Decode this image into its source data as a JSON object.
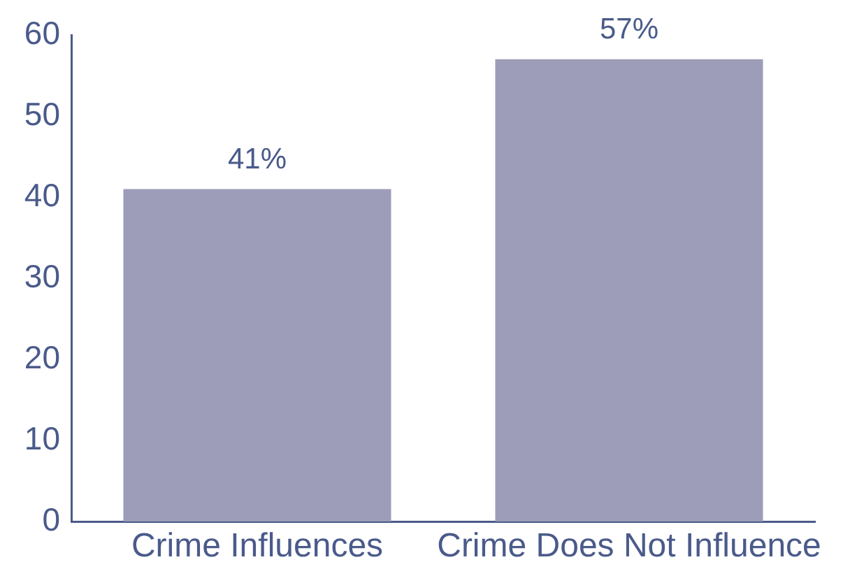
{
  "chart_data": {
    "type": "bar",
    "categories": [
      "Crime Influences",
      "Crime Does Not Influence"
    ],
    "values": [
      41,
      57
    ],
    "color": "#9d9db9",
    "value_labels": [
      "41%",
      "57%"
    ],
    "ylim": [
      0,
      60
    ],
    "yticks": [
      0,
      10,
      20,
      30,
      40,
      50,
      60
    ]
  }
}
